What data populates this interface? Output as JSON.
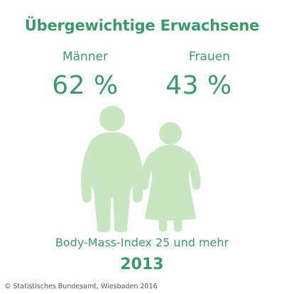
{
  "title": "Übergewichtige Erwachsene",
  "men": {
    "label": "Männer",
    "value_text": "62 %"
  },
  "women": {
    "label": "Frauen",
    "value_text": "43 %"
  },
  "caption": "Body-Mass-Index 25 und mehr",
  "year": "2013",
  "source": "© Statistisches Bundesamt, Wiesbaden 2016",
  "colors": {
    "text_green": "#3a9a6b",
    "figure_green": "#c9e6c3",
    "source_gray": "#555555"
  },
  "icons": {
    "men": "overweight-man-icon",
    "women": "overweight-woman-icon"
  }
}
